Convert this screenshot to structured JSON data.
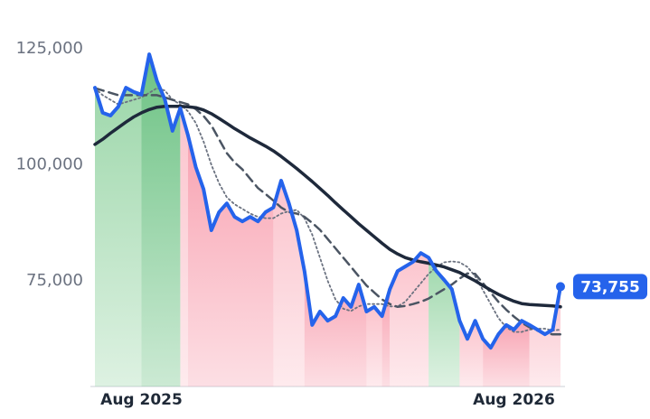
{
  "chart_data": {
    "type": "line",
    "categories": [
      null,
      null,
      null,
      null,
      null,
      null,
      "Aug 2025",
      null,
      null,
      null,
      null,
      null,
      null,
      null,
      null,
      null,
      null,
      null,
      null,
      null,
      null,
      null,
      null,
      null,
      null,
      null,
      null,
      null,
      null,
      null,
      null,
      null,
      null,
      null,
      null,
      null,
      null,
      null,
      null,
      null,
      null,
      null,
      null,
      null,
      null,
      null,
      null,
      null,
      null,
      null,
      null,
      null,
      null,
      null,
      "Aug 2026",
      null,
      null,
      null,
      null,
      null,
      null
    ],
    "series": [
      {
        "color": "#2563eb",
        "values": [
          116600,
          111200,
          110600,
          112500,
          116600,
          115700,
          115100,
          123800,
          118000,
          114100,
          107300,
          112200,
          106300,
          99500,
          94700,
          85900,
          89800,
          91700,
          88800,
          87800,
          88800,
          87800,
          89800,
          90800,
          96600,
          91700,
          85900,
          77100,
          65500,
          68400,
          66400,
          67400,
          71300,
          69400,
          74200,
          68400,
          69400,
          67400,
          73200,
          77100,
          78100,
          79100,
          81000,
          80000,
          77100,
          75200,
          73200,
          66400,
          62500,
          66400,
          62500,
          60600,
          63500,
          65500,
          64500,
          66400,
          65500,
          64500,
          63500,
          64500,
          73755
        ],
        "value_labels": [
          null,
          null,
          null,
          null,
          null,
          null,
          null,
          null,
          null,
          null,
          null,
          null,
          null,
          null,
          null,
          null,
          null,
          null,
          null,
          null,
          null,
          null,
          null,
          null,
          null,
          null,
          null,
          null,
          null,
          null,
          null,
          null,
          null,
          null,
          null,
          null,
          null,
          null,
          null,
          null,
          null,
          null,
          null,
          null,
          null,
          null,
          null,
          null,
          null,
          null,
          null,
          null,
          null,
          null,
          null,
          null,
          null,
          null,
          null,
          null,
          "73,755"
        ]
      },
      {
        "color": "#1e293b",
        "values": [
          104400,
          105500,
          106800,
          108000,
          109200,
          110300,
          111200,
          111900,
          112400,
          112600,
          112600,
          112600,
          112500,
          112300,
          111800,
          111000,
          110000,
          108900,
          107800,
          106800,
          105800,
          104900,
          104000,
          103000,
          101800,
          100500,
          99200,
          97800,
          96400,
          94900,
          93400,
          91800,
          90300,
          88800,
          87300,
          85900,
          84500,
          83100,
          81800,
          80800,
          80000,
          79500,
          79100,
          78800,
          78400,
          78000,
          77400,
          76800,
          75900,
          75000,
          74000,
          73000,
          72100,
          71300,
          70600,
          70100,
          69900,
          69800,
          69700,
          69600,
          69400
        ]
      },
      {
        "color": "#4b5563",
        "dash": "dashed",
        "values": [
          116500,
          116000,
          115500,
          115000,
          115000,
          115000,
          115000,
          115000,
          115000,
          114500,
          114000,
          113500,
          113000,
          112000,
          110500,
          108500,
          105500,
          102500,
          100500,
          99000,
          97000,
          95000,
          93700,
          92300,
          90800,
          89800,
          89500,
          88800,
          87500,
          86000,
          84000,
          82000,
          80000,
          78000,
          76000,
          74000,
          72500,
          71000,
          70000,
          69400,
          69600,
          70000,
          70500,
          71200,
          72200,
          73200,
          74200,
          75500,
          76600,
          76500,
          74500,
          72500,
          70500,
          68800,
          67300,
          66000,
          65000,
          64300,
          63700,
          63500,
          63500
        ]
      },
      {
        "color": "#6b7280",
        "dash": "dotted",
        "values": [
          116500,
          115000,
          114000,
          113000,
          113500,
          114000,
          114500,
          115500,
          116500,
          116000,
          114000,
          113000,
          111500,
          109000,
          105000,
          100000,
          96000,
          93000,
          91500,
          90500,
          89500,
          88800,
          88500,
          88500,
          89500,
          90000,
          90300,
          88500,
          85000,
          80000,
          75000,
          71000,
          69000,
          68500,
          69500,
          70000,
          70000,
          70000,
          69500,
          69500,
          70500,
          72500,
          74500,
          76500,
          78000,
          79000,
          79200,
          79000,
          78000,
          76000,
          73000,
          70000,
          67000,
          65000,
          64000,
          64000,
          64500,
          64700,
          64700,
          64300,
          64500
        ]
      }
    ],
    "bands": [
      {
        "from": 0,
        "to": 6,
        "color": "#9fd8ac"
      },
      {
        "from": 6,
        "to": 11,
        "color": "#6cc283"
      },
      {
        "from": 11,
        "to": 12,
        "color": "#fbc4cd"
      },
      {
        "from": 12,
        "to": 23,
        "color": "#f8a3b2"
      },
      {
        "from": 23,
        "to": 27,
        "color": "#fbc4cd"
      },
      {
        "from": 27,
        "to": 35,
        "color": "#f8a3b2"
      },
      {
        "from": 35,
        "to": 37,
        "color": "#fbc4cd"
      },
      {
        "from": 37,
        "to": 38,
        "color": "#f8a3b2"
      },
      {
        "from": 38,
        "to": 43,
        "color": "#fbc4cd"
      },
      {
        "from": 43,
        "to": 47,
        "color": "#9fd8ac"
      },
      {
        "from": 47,
        "to": 50,
        "color": "#fbc4cd"
      },
      {
        "from": 50,
        "to": 56,
        "color": "#f8a3b2"
      },
      {
        "from": 56,
        "to": 60,
        "color": "#fbc4cd"
      }
    ],
    "ylim": [
      52250,
      131600
    ],
    "yticks": [
      {
        "value": 75000,
        "label": "75,000"
      },
      {
        "value": 100000,
        "label": "100,000"
      },
      {
        "value": 125000,
        "label": "125,000"
      }
    ],
    "grid": false
  }
}
